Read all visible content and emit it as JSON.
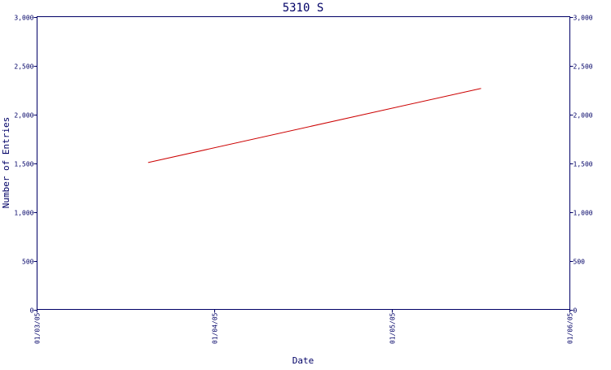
{
  "chart_data": {
    "type": "line",
    "title": "5310 S",
    "xlabel": "Date",
    "ylabel": "Number of Entries",
    "x_ticks": [
      "01/03/05",
      "01/04/05",
      "01/05/05",
      "01/06/05"
    ],
    "x_range": [
      "2005-01-03",
      "2005-01-06"
    ],
    "y_ticks": [
      "0",
      "500",
      "1,000",
      "1,500",
      "2,000",
      "2,500",
      "3,000"
    ],
    "y_tick_values": [
      0,
      500,
      1000,
      1500,
      2000,
      2500,
      3000
    ],
    "ylim": [
      0,
      3000
    ],
    "right_axis_mirrors_left": true,
    "grid": false,
    "series": [
      {
        "color": "#cc0000",
        "points": [
          {
            "x": "2005-01-03T15:00",
            "y": 1505
          },
          {
            "x": "2005-01-05T12:00",
            "y": 2265
          }
        ]
      }
    ],
    "colors": {
      "axis": "#000066",
      "line": "#cc0000",
      "background": "#ffffff"
    }
  }
}
